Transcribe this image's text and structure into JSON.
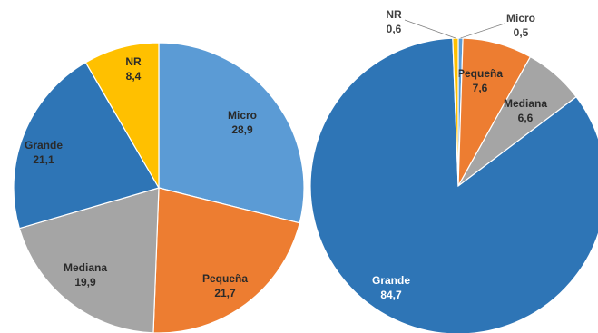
{
  "chart_data": [
    {
      "type": "pie",
      "title": "",
      "slices": [
        {
          "name": "Micro",
          "label": "Micro",
          "value_label": "28,9",
          "value": 28.9,
          "color": "#5B9BD5"
        },
        {
          "name": "Pequeña",
          "label": "Pequeña",
          "value_label": "21,7",
          "value": 21.7,
          "color": "#ED7D31"
        },
        {
          "name": "Mediana",
          "label": "Mediana",
          "value_label": "19,9",
          "value": 19.9,
          "color": "#A5A5A5"
        },
        {
          "name": "Grande",
          "label": "Grande",
          "value_label": "21,1",
          "value": 21.1,
          "color": "#2E75B6"
        },
        {
          "name": "NR",
          "label": "NR",
          "value_label": "8,4",
          "value": 8.4,
          "color": "#FFC000"
        }
      ]
    },
    {
      "type": "pie",
      "title": "",
      "slices": [
        {
          "name": "Micro",
          "label": "Micro",
          "value_label": "0,5",
          "value": 0.5,
          "color": "#5B9BD5"
        },
        {
          "name": "Pequeña",
          "label": "Pequeña",
          "value_label": "7,6",
          "value": 7.6,
          "color": "#ED7D31"
        },
        {
          "name": "Mediana",
          "label": "Mediana",
          "value_label": "6,6",
          "value": 6.6,
          "color": "#A5A5A5"
        },
        {
          "name": "Grande",
          "label": "Grande",
          "value_label": "84,7",
          "value": 84.7,
          "color": "#2E75B6"
        },
        {
          "name": "NR",
          "label": "NR",
          "value_label": "0,6",
          "value": 0.6,
          "color": "#FFC000"
        }
      ]
    }
  ]
}
